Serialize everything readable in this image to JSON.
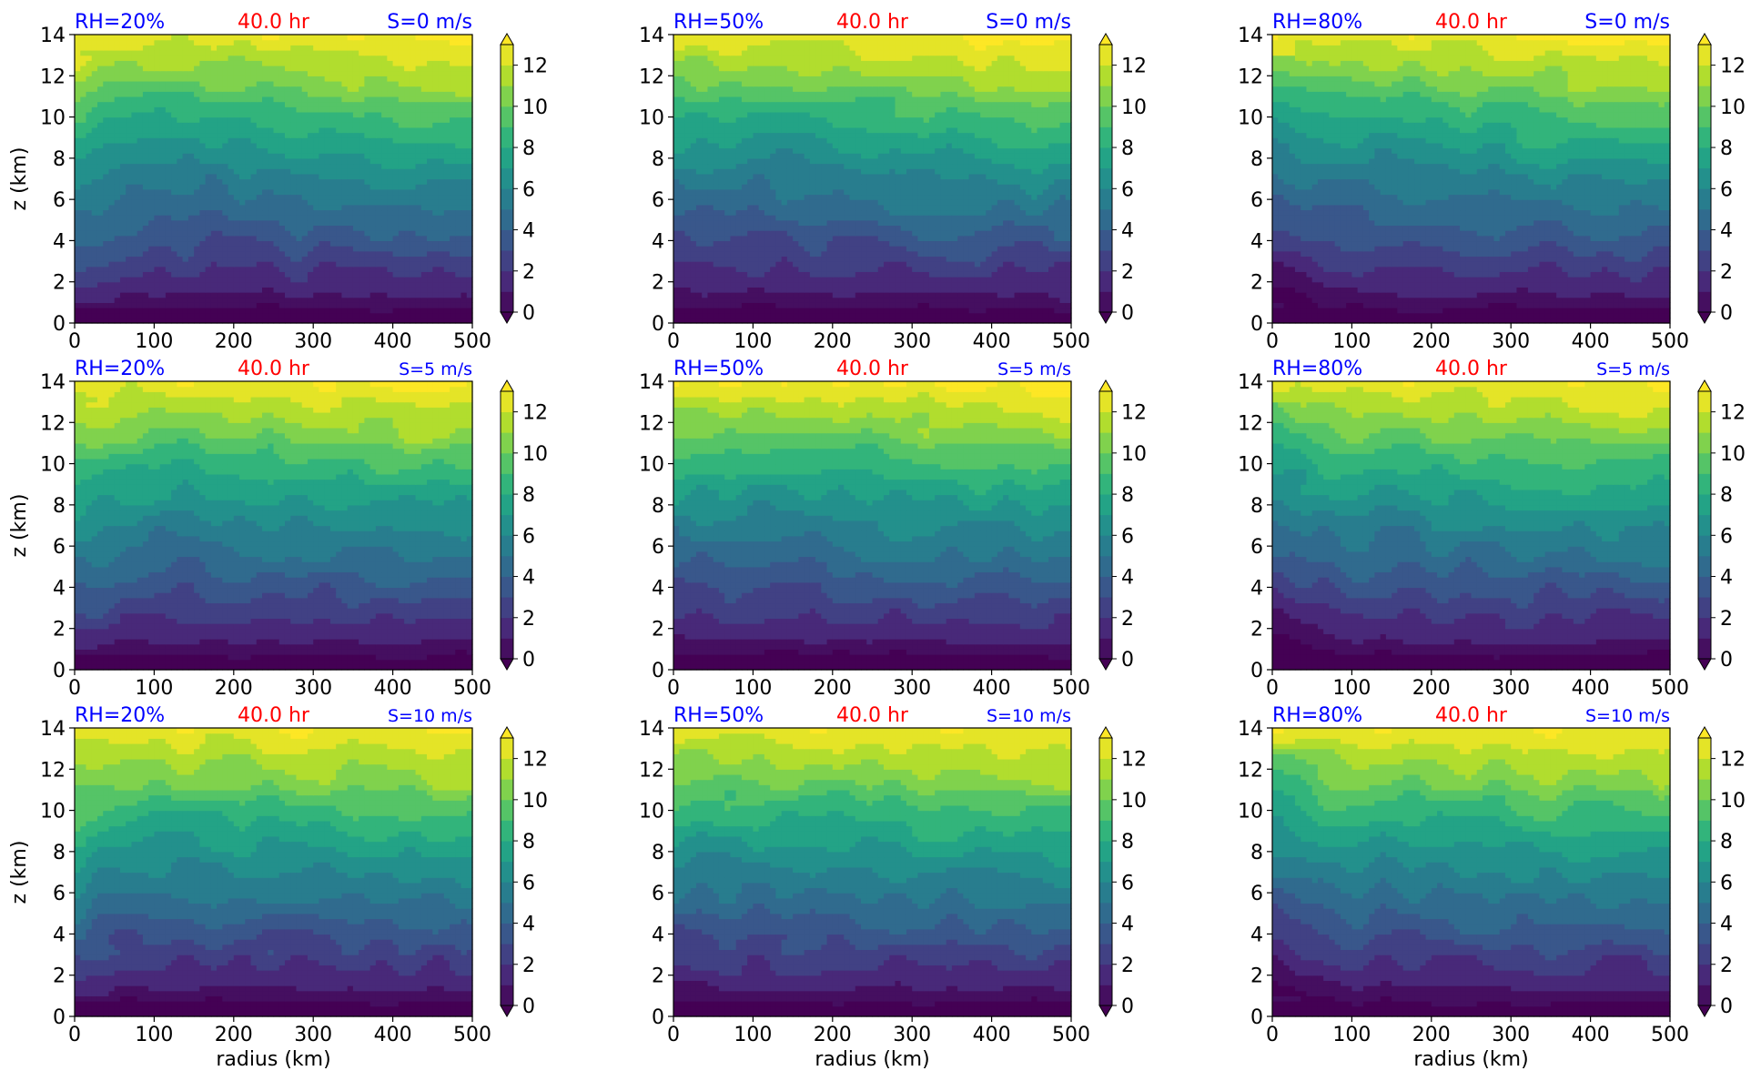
{
  "chart_data": {
    "type": "contourf",
    "layout": "3x3",
    "time_label": "40.0 hr",
    "xlabel": "radius (km)",
    "ylabel": "z (km)",
    "xlim": [
      0,
      500
    ],
    "ylim": [
      0,
      14
    ],
    "xticks": [
      0,
      100,
      200,
      300,
      400,
      500
    ],
    "yticks": [
      0,
      2,
      4,
      6,
      8,
      10,
      12,
      14
    ],
    "colorbar": {
      "levels": [
        0,
        1,
        2,
        3,
        4,
        5,
        6,
        7,
        8,
        9,
        10,
        11,
        12,
        13
      ],
      "ticks": [
        0,
        2,
        4,
        6,
        8,
        10,
        12
      ],
      "extend": "both",
      "colormap": "viridis"
    },
    "panels": [
      {
        "rh_label": "RH=20%",
        "shear_label": "S=0 m/s",
        "rh": 20,
        "shear": 0
      },
      {
        "rh_label": "RH=50%",
        "shear_label": "S=0 m/s",
        "rh": 50,
        "shear": 0
      },
      {
        "rh_label": "RH=80%",
        "shear_label": "S=0 m/s",
        "rh": 80,
        "shear": 0
      },
      {
        "rh_label": "RH=20%",
        "shear_label": "S=5 m/s",
        "rh": 20,
        "shear": 5
      },
      {
        "rh_label": "RH=50%",
        "shear_label": "S=5 m/s",
        "rh": 50,
        "shear": 5
      },
      {
        "rh_label": "RH=80%",
        "shear_label": "S=5 m/s",
        "rh": 80,
        "shear": 5
      },
      {
        "rh_label": "RH=20%",
        "shear_label": "S=10 m/s",
        "rh": 20,
        "shear": 10
      },
      {
        "rh_label": "RH=50%",
        "shear_label": "S=10 m/s",
        "rh": 50,
        "shear": 10
      },
      {
        "rh_label": "RH=80%",
        "shear_label": "S=10 m/s",
        "rh": 80,
        "shear": 10
      }
    ],
    "colors": {
      "rh_label": "#0000ff",
      "time_label": "#ff0000",
      "shear_label": "#0000ff"
    }
  }
}
